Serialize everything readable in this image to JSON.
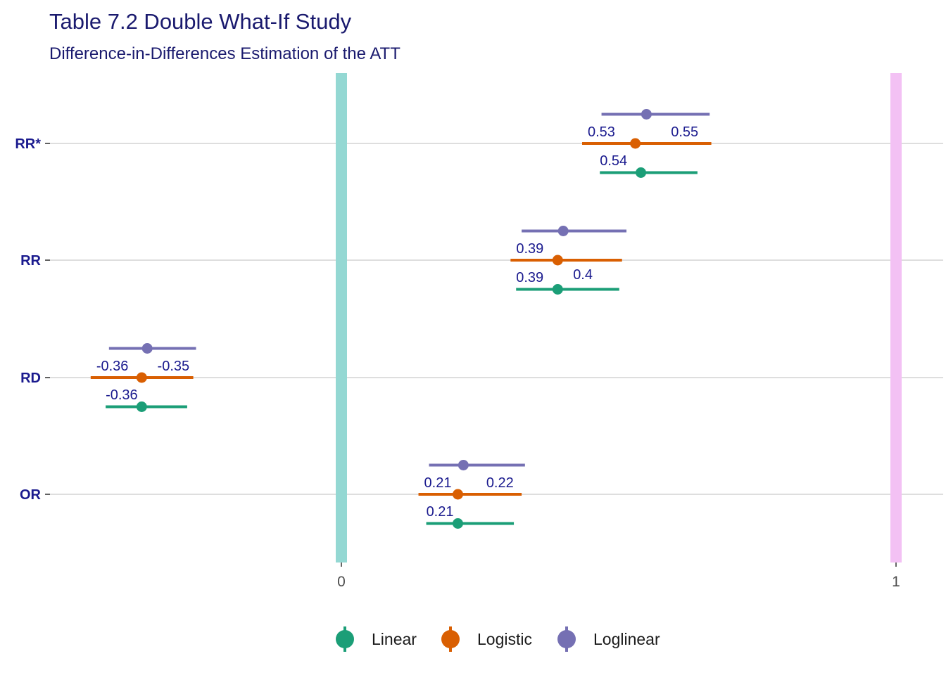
{
  "chart_data": {
    "type": "forest",
    "title": "Table 7.2 Double What-If Study",
    "subtitle": "Difference-in-Differences Estimation of the ATT",
    "xlabel": "",
    "ylabel": "",
    "x_ticks": [
      {
        "value": 0,
        "label": "0"
      },
      {
        "value": 1,
        "label": "1"
      }
    ],
    "reference_lines": [
      {
        "value": 0,
        "color": "#94d8d3"
      },
      {
        "value": 1,
        "color": "#f3c1f4"
      }
    ],
    "categories": [
      "RR*",
      "RR",
      "RD",
      "OR"
    ],
    "legend_position": "bottom",
    "series": [
      {
        "name": "Linear",
        "color": "#1b9e77",
        "estimates": [
          0.54,
          0.39,
          -0.36,
          0.21
        ],
        "lower": [
          0.466,
          0.315,
          -0.425,
          0.153
        ],
        "upper": [
          0.642,
          0.501,
          -0.278,
          0.311
        ],
        "labels": [
          "0.54",
          "0.39",
          "-0.36",
          "0.21"
        ]
      },
      {
        "name": "Logistic",
        "color": "#d95f02",
        "estimates": [
          0.53,
          0.39,
          -0.36,
          0.21
        ],
        "lower": [
          0.434,
          0.305,
          -0.452,
          0.139
        ],
        "upper": [
          0.667,
          0.506,
          -0.267,
          0.325
        ],
        "labels": [
          "0.53",
          "0.39",
          "-0.36",
          "0.21"
        ]
      },
      {
        "name": "Loglinear",
        "color": "#7570b3",
        "estimates": [
          0.55,
          0.4,
          -0.35,
          0.22
        ],
        "lower": [
          0.469,
          0.325,
          -0.419,
          0.158
        ],
        "upper": [
          0.664,
          0.514,
          -0.262,
          0.331
        ],
        "labels": [
          "0.55",
          "0.4",
          "-0.35",
          "0.22"
        ]
      }
    ]
  }
}
